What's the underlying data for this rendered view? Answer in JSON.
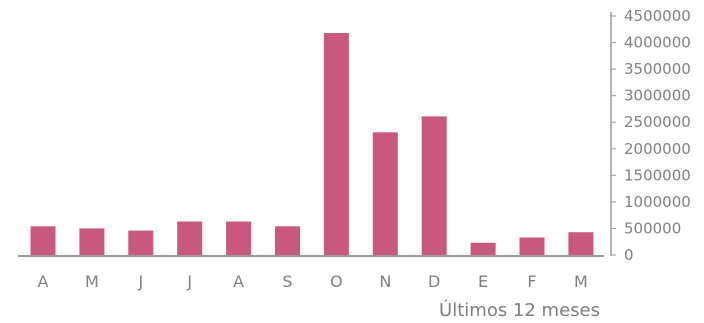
{
  "chart_data": {
    "type": "bar",
    "categories": [
      "A",
      "M",
      "J",
      "J",
      "A",
      "S",
      "O",
      "N",
      "D",
      "E",
      "F",
      "M"
    ],
    "values": [
      540000,
      500000,
      460000,
      630000,
      630000,
      540000,
      4180000,
      2310000,
      2610000,
      230000,
      330000,
      430000
    ],
    "xlabel": "Últimos 12 meses",
    "ylim": [
      0,
      4500000
    ],
    "yticks": [
      0,
      500000,
      1000000,
      1500000,
      2000000,
      2500000,
      3000000,
      3500000,
      4000000,
      4500000
    ],
    "ytick_labels": [
      "0",
      "500000",
      "1000000",
      "1500000",
      "2000000",
      "2500000",
      "3000000",
      "3500000",
      "4000000",
      "4500000"
    ],
    "y_axis_position": "right",
    "grid": false,
    "bar_color": "#c9587e",
    "axis_color": "#9a9a9a"
  }
}
